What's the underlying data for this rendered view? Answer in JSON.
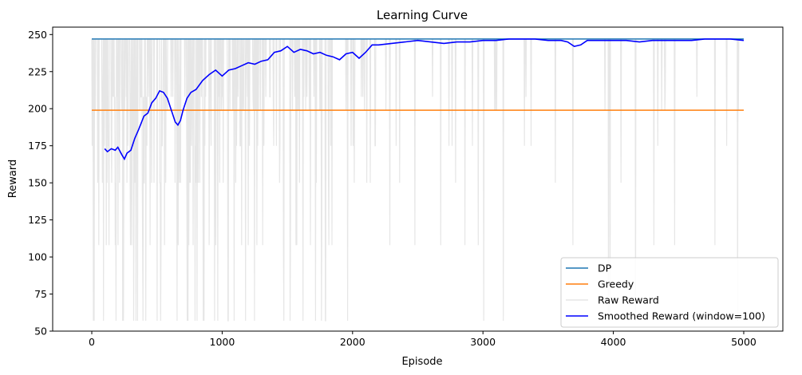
{
  "chart_data": {
    "type": "line",
    "title": "Learning Curve",
    "xlabel": "Episode",
    "ylabel": "Reward",
    "xlim": [
      -300,
      5300
    ],
    "ylim": [
      50,
      255
    ],
    "x_ticks": [
      0,
      1000,
      2000,
      3000,
      4000,
      5000
    ],
    "y_ticks": [
      50,
      75,
      100,
      125,
      150,
      175,
      200,
      225,
      250
    ],
    "grid": false,
    "legend_position": "lower-right",
    "series": [
      {
        "name": "DP",
        "color": "#1f77b4",
        "kind": "constant",
        "value": 247,
        "x_range": [
          0,
          5000
        ]
      },
      {
        "name": "Greedy",
        "color": "#ff7f0e",
        "kind": "constant",
        "value": 199,
        "x_range": [
          0,
          5000
        ]
      },
      {
        "name": "Raw Reward",
        "color": "#e6e6e6",
        "kind": "raw",
        "x_range": [
          0,
          5000
        ],
        "description_values": {
          "max": 247,
          "min": 57,
          "common_values": [
            247,
            208,
            199,
            175,
            150,
            108,
            57
          ]
        }
      },
      {
        "name": "Smoothed Reward (window=100)",
        "color": "#0000ff",
        "kind": "line",
        "x": [
          99,
          120,
          150,
          180,
          200,
          230,
          250,
          270,
          300,
          330,
          360,
          400,
          430,
          460,
          490,
          520,
          550,
          580,
          610,
          640,
          660,
          680,
          700,
          730,
          760,
          800,
          850,
          900,
          950,
          1000,
          1050,
          1100,
          1150,
          1200,
          1250,
          1300,
          1350,
          1400,
          1450,
          1500,
          1550,
          1600,
          1650,
          1700,
          1750,
          1800,
          1850,
          1900,
          1950,
          2000,
          2050,
          2100,
          2150,
          2200,
          2300,
          2400,
          2500,
          2600,
          2700,
          2800,
          2900,
          3000,
          3100,
          3200,
          3300,
          3400,
          3500,
          3600,
          3650,
          3700,
          3750,
          3800,
          3900,
          4000,
          4100,
          4200,
          4300,
          4400,
          4500,
          4600,
          4700,
          4800,
          4900,
          5000
        ],
        "values": [
          173,
          171,
          173,
          172,
          174,
          169,
          166,
          170,
          172,
          180,
          186,
          195,
          197,
          204,
          207,
          212,
          211,
          207,
          199,
          191,
          189,
          192,
          199,
          207,
          211,
          213,
          219,
          223,
          226,
          222,
          226,
          227,
          229,
          231,
          230,
          232,
          233,
          238,
          239,
          242,
          238,
          240,
          239,
          237,
          238,
          236,
          235,
          233,
          237,
          238,
          234,
          238,
          243,
          243,
          244,
          245,
          246,
          245,
          244,
          245,
          245,
          246,
          246,
          247,
          247,
          247,
          246,
          246,
          245,
          242,
          243,
          246,
          246,
          246,
          246,
          245,
          246,
          246,
          246,
          246,
          247,
          247,
          247,
          246
        ]
      }
    ],
    "legend": [
      {
        "label": "DP",
        "color": "#1f77b4"
      },
      {
        "label": "Greedy",
        "color": "#ff7f0e"
      },
      {
        "label": "Raw Reward",
        "color": "#e6e6e6"
      },
      {
        "label": "Smoothed Reward (window=100)",
        "color": "#0000ff"
      }
    ]
  }
}
